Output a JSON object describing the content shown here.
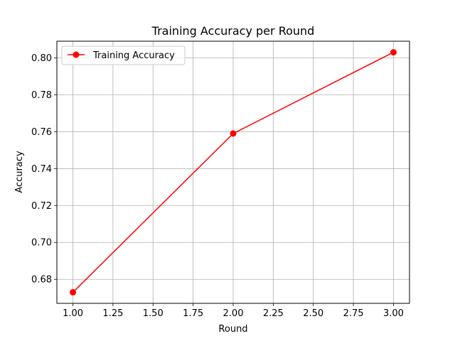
{
  "chart_data": {
    "type": "line",
    "title": "Training Accuracy per Round",
    "xlabel": "Round",
    "ylabel": "Accuracy",
    "xlim": [
      0.9,
      3.1
    ],
    "ylim": [
      0.667,
      0.809
    ],
    "xticks": [
      1.0,
      1.25,
      1.5,
      1.75,
      2.0,
      2.25,
      2.5,
      2.75,
      3.0
    ],
    "xtick_labels": [
      "1.00",
      "1.25",
      "1.50",
      "1.75",
      "2.00",
      "2.25",
      "2.50",
      "2.75",
      "3.00"
    ],
    "yticks": [
      0.68,
      0.7,
      0.72,
      0.74,
      0.76,
      0.78,
      0.8
    ],
    "ytick_labels": [
      "0.68",
      "0.70",
      "0.72",
      "0.74",
      "0.76",
      "0.78",
      "0.80"
    ],
    "grid": true,
    "legend_position": "top-left",
    "series": [
      {
        "name": "Training Accuracy",
        "color": "#ff0000",
        "marker": "circle",
        "x": [
          1,
          2,
          3
        ],
        "y": [
          0.673,
          0.759,
          0.803
        ]
      }
    ]
  }
}
